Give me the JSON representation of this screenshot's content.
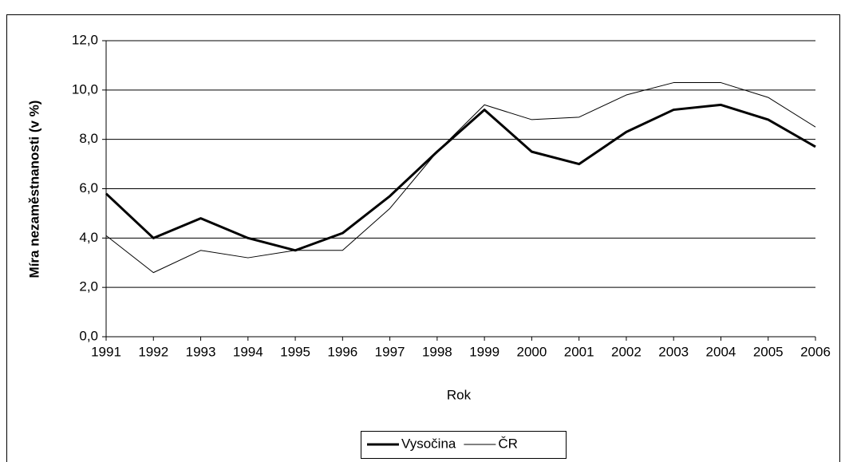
{
  "chart_data": {
    "type": "line",
    "ylabel": "Míra nezaměstnanosti (v %)",
    "xlabel": "Rok",
    "categories": [
      "1991",
      "1992",
      "1993",
      "1994",
      "1995",
      "1996",
      "1997",
      "1998",
      "1999",
      "2000",
      "2001",
      "2002",
      "2003",
      "2004",
      "2005",
      "2006"
    ],
    "series": [
      {
        "name": "Vysočina",
        "color": "#000000",
        "width": 3,
        "values": [
          5.8,
          4.0,
          4.8,
          4.0,
          3.5,
          4.2,
          5.7,
          7.5,
          9.2,
          7.5,
          7.0,
          8.3,
          9.2,
          9.4,
          8.8,
          7.7
        ]
      },
      {
        "name": "ČR",
        "color": "#000000",
        "width": 1,
        "values": [
          4.1,
          2.6,
          3.5,
          3.2,
          3.5,
          3.5,
          5.2,
          7.5,
          9.4,
          8.8,
          8.9,
          9.8,
          10.3,
          10.3,
          9.7,
          8.5
        ]
      }
    ],
    "ylim": [
      0,
      12
    ],
    "yticks": [
      {
        "value": 0,
        "label": "0,0"
      },
      {
        "value": 2,
        "label": "2,0"
      },
      {
        "value": 4,
        "label": "4,0"
      },
      {
        "value": 6,
        "label": "6,0"
      },
      {
        "value": 8,
        "label": "8,0"
      },
      {
        "value": 10,
        "label": "10,0"
      },
      {
        "value": 12,
        "label": "12,0"
      }
    ],
    "grid": true,
    "legend": "bottom"
  }
}
